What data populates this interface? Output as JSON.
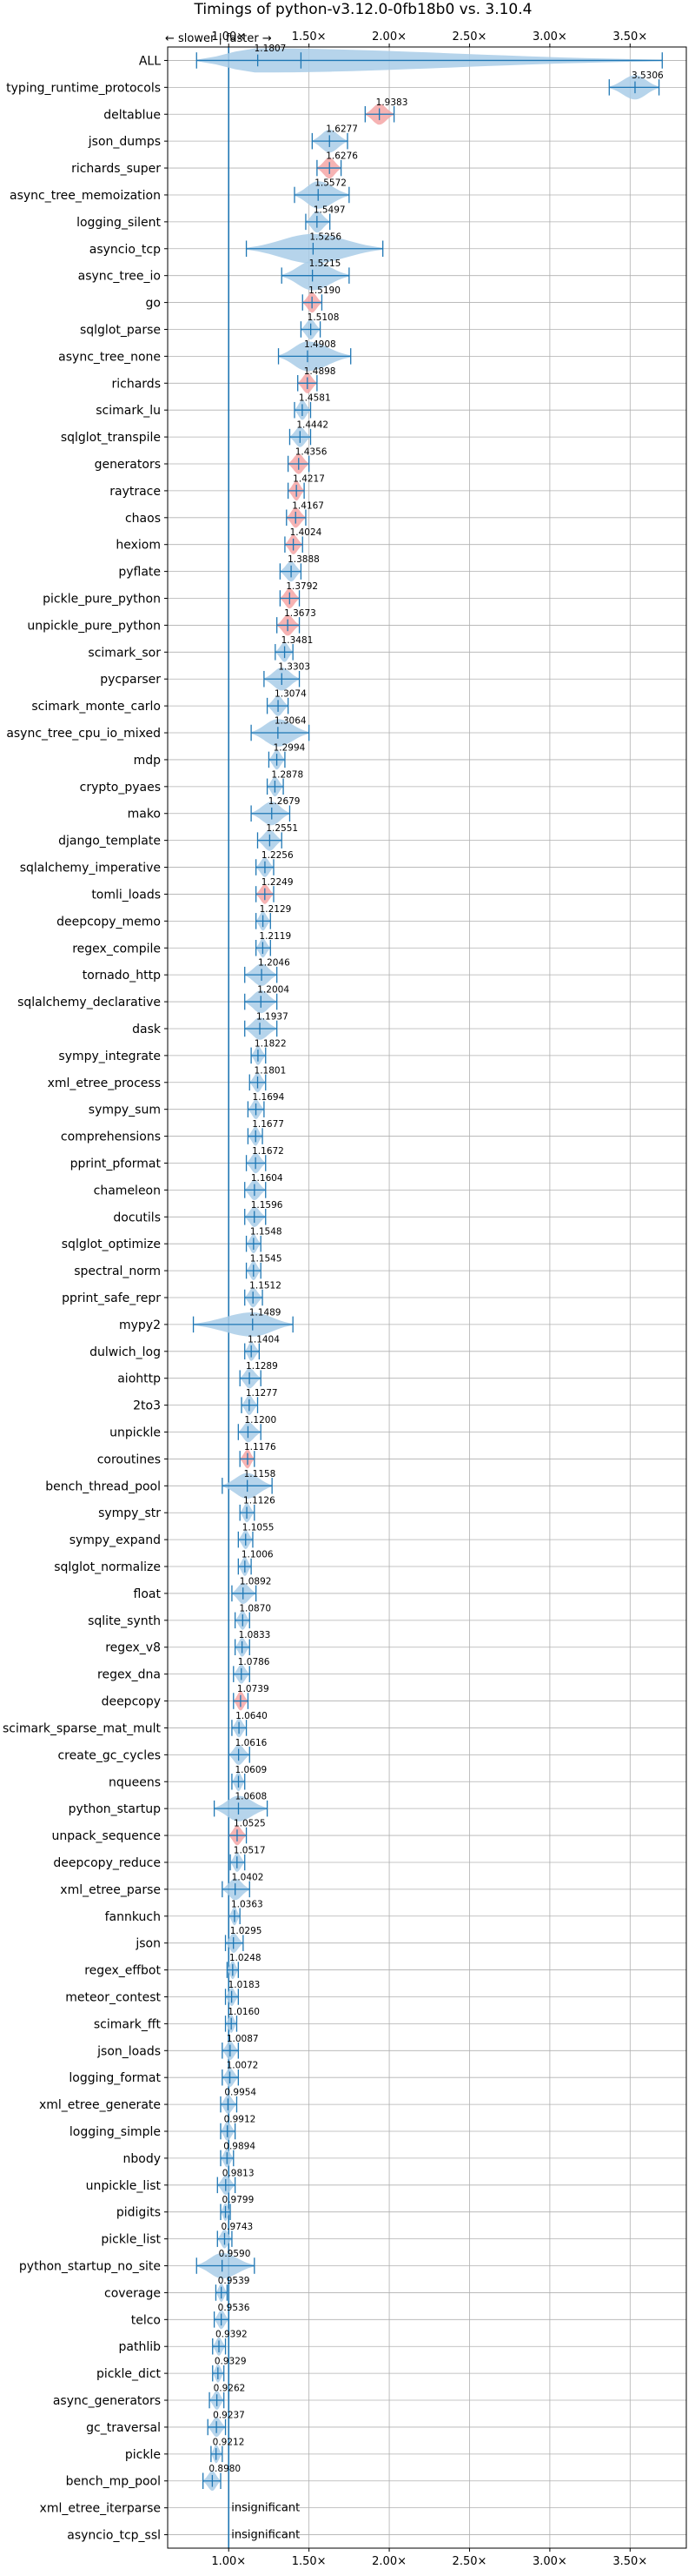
{
  "chart_data": {
    "type": "violin",
    "title": "Timings of python-v3.12.0-0fb18b0 vs. 3.10.4",
    "direction_note": "← slower | faster →",
    "xlim": [
      0.62,
      3.85
    ],
    "xticks": [
      1.0,
      1.5,
      2.0,
      2.5,
      3.0,
      3.5
    ],
    "xtick_labels": [
      "1.00×",
      "1.50×",
      "2.00×",
      "2.50×",
      "3.00×",
      "3.50×"
    ],
    "reference_line": 1.0,
    "grid": true,
    "colors": {
      "normal": "#a9cce8",
      "significant": "#f4a6a6",
      "line": "#1f77b4",
      "grid": "#b0b0b0"
    },
    "benchmarks": [
      {
        "name": "ALL",
        "label": "1.1807",
        "min": 0.8,
        "max": 3.7,
        "width": 0.12,
        "red": false,
        "extra": [
          1.45
        ]
      },
      {
        "name": "typing_runtime_protocols",
        "label": "3.5306",
        "min": 3.37,
        "max": 3.68,
        "width": 0.12,
        "red": false
      },
      {
        "name": "deltablue",
        "label": "1.9383",
        "min": 1.85,
        "max": 2.03,
        "width": 0.07,
        "red": true
      },
      {
        "name": "json_dumps",
        "label": "1.6277",
        "min": 1.52,
        "max": 1.74,
        "width": 0.1,
        "red": false
      },
      {
        "name": "richards_super",
        "label": "1.6276",
        "min": 1.55,
        "max": 1.7,
        "width": 0.07,
        "red": true
      },
      {
        "name": "async_tree_memoization",
        "label": "1.5572",
        "min": 1.41,
        "max": 1.75,
        "width": 0.17,
        "red": false
      },
      {
        "name": "logging_silent",
        "label": "1.5497",
        "min": 1.48,
        "max": 1.63,
        "width": 0.08,
        "red": false
      },
      {
        "name": "asyncio_tcp",
        "label": "1.5256",
        "min": 1.11,
        "max": 1.96,
        "width": 0.4,
        "red": false
      },
      {
        "name": "async_tree_io",
        "label": "1.5215",
        "min": 1.33,
        "max": 1.75,
        "width": 0.2,
        "red": false
      },
      {
        "name": "go",
        "label": "1.5190",
        "min": 1.46,
        "max": 1.58,
        "width": 0.06,
        "red": true
      },
      {
        "name": "sqlglot_parse",
        "label": "1.5108",
        "min": 1.45,
        "max": 1.57,
        "width": 0.06,
        "red": false
      },
      {
        "name": "async_tree_none",
        "label": "1.4908",
        "min": 1.31,
        "max": 1.76,
        "width": 0.22,
        "red": false
      },
      {
        "name": "richards",
        "label": "1.4898",
        "min": 1.43,
        "max": 1.55,
        "width": 0.06,
        "red": true
      },
      {
        "name": "scimark_lu",
        "label": "1.4581",
        "min": 1.41,
        "max": 1.51,
        "width": 0.05,
        "red": false
      },
      {
        "name": "sqlglot_transpile",
        "label": "1.4442",
        "min": 1.38,
        "max": 1.51,
        "width": 0.06,
        "red": false
      },
      {
        "name": "generators",
        "label": "1.4356",
        "min": 1.37,
        "max": 1.5,
        "width": 0.06,
        "red": true
      },
      {
        "name": "raytrace",
        "label": "1.4217",
        "min": 1.37,
        "max": 1.47,
        "width": 0.05,
        "red": true
      },
      {
        "name": "chaos",
        "label": "1.4167",
        "min": 1.36,
        "max": 1.48,
        "width": 0.06,
        "red": true
      },
      {
        "name": "hexiom",
        "label": "1.4024",
        "min": 1.35,
        "max": 1.46,
        "width": 0.05,
        "red": true
      },
      {
        "name": "pyflate",
        "label": "1.3888",
        "min": 1.32,
        "max": 1.45,
        "width": 0.06,
        "red": false
      },
      {
        "name": "pickle_pure_python",
        "label": "1.3792",
        "min": 1.32,
        "max": 1.44,
        "width": 0.06,
        "red": true
      },
      {
        "name": "unpickle_pure_python",
        "label": "1.3673",
        "min": 1.3,
        "max": 1.44,
        "width": 0.07,
        "red": true
      },
      {
        "name": "scimark_sor",
        "label": "1.3481",
        "min": 1.29,
        "max": 1.4,
        "width": 0.05,
        "red": false
      },
      {
        "name": "pycparser",
        "label": "1.3303",
        "min": 1.22,
        "max": 1.44,
        "width": 0.1,
        "red": false
      },
      {
        "name": "scimark_monte_carlo",
        "label": "1.3074",
        "min": 1.24,
        "max": 1.37,
        "width": 0.06,
        "red": false
      },
      {
        "name": "async_tree_cpu_io_mixed",
        "label": "1.3064",
        "min": 1.14,
        "max": 1.5,
        "width": 0.17,
        "red": false
      },
      {
        "name": "mdp",
        "label": "1.2994",
        "min": 1.25,
        "max": 1.35,
        "width": 0.05,
        "red": false
      },
      {
        "name": "crypto_pyaes",
        "label": "1.2878",
        "min": 1.24,
        "max": 1.34,
        "width": 0.05,
        "red": false
      },
      {
        "name": "mako",
        "label": "1.2679",
        "min": 1.14,
        "max": 1.38,
        "width": 0.11,
        "red": false
      },
      {
        "name": "django_template",
        "label": "1.2551",
        "min": 1.18,
        "max": 1.33,
        "width": 0.07,
        "red": false
      },
      {
        "name": "sqlalchemy_imperative",
        "label": "1.2256",
        "min": 1.17,
        "max": 1.28,
        "width": 0.05,
        "red": false
      },
      {
        "name": "tomli_loads",
        "label": "1.2249",
        "min": 1.17,
        "max": 1.28,
        "width": 0.05,
        "red": true
      },
      {
        "name": "deepcopy_memo",
        "label": "1.2129",
        "min": 1.17,
        "max": 1.26,
        "width": 0.04,
        "red": false
      },
      {
        "name": "regex_compile",
        "label": "1.2119",
        "min": 1.17,
        "max": 1.26,
        "width": 0.04,
        "red": false
      },
      {
        "name": "tornado_http",
        "label": "1.2046",
        "min": 1.1,
        "max": 1.3,
        "width": 0.09,
        "red": false
      },
      {
        "name": "sqlalchemy_declarative",
        "label": "1.2004",
        "min": 1.1,
        "max": 1.3,
        "width": 0.1,
        "red": false
      },
      {
        "name": "dask",
        "label": "1.1937",
        "min": 1.1,
        "max": 1.3,
        "width": 0.09,
        "red": false
      },
      {
        "name": "sympy_integrate",
        "label": "1.1822",
        "min": 1.14,
        "max": 1.23,
        "width": 0.04,
        "red": false
      },
      {
        "name": "xml_etree_process",
        "label": "1.1801",
        "min": 1.13,
        "max": 1.23,
        "width": 0.05,
        "red": false
      },
      {
        "name": "sympy_sum",
        "label": "1.1694",
        "min": 1.12,
        "max": 1.22,
        "width": 0.05,
        "red": false
      },
      {
        "name": "comprehensions",
        "label": "1.1677",
        "min": 1.12,
        "max": 1.21,
        "width": 0.04,
        "red": false
      },
      {
        "name": "pprint_pformat",
        "label": "1.1672",
        "min": 1.11,
        "max": 1.23,
        "width": 0.06,
        "red": false
      },
      {
        "name": "chameleon",
        "label": "1.1604",
        "min": 1.1,
        "max": 1.23,
        "width": 0.06,
        "red": false
      },
      {
        "name": "docutils",
        "label": "1.1596",
        "min": 1.1,
        "max": 1.23,
        "width": 0.06,
        "red": false
      },
      {
        "name": "sqlglot_optimize",
        "label": "1.1548",
        "min": 1.11,
        "max": 1.2,
        "width": 0.04,
        "red": false
      },
      {
        "name": "spectral_norm",
        "label": "1.1545",
        "min": 1.11,
        "max": 1.2,
        "width": 0.04,
        "red": false
      },
      {
        "name": "pprint_safe_repr",
        "label": "1.1512",
        "min": 1.1,
        "max": 1.21,
        "width": 0.05,
        "red": false
      },
      {
        "name": "mypy2",
        "label": "1.1489",
        "min": 0.78,
        "max": 1.4,
        "width": 0.12,
        "red": false
      },
      {
        "name": "dulwich_log",
        "label": "1.1404",
        "min": 1.1,
        "max": 1.19,
        "width": 0.04,
        "red": false
      },
      {
        "name": "aiohttp",
        "label": "1.1289",
        "min": 1.07,
        "max": 1.2,
        "width": 0.06,
        "red": false
      },
      {
        "name": "2to3",
        "label": "1.1277",
        "min": 1.08,
        "max": 1.18,
        "width": 0.05,
        "red": false
      },
      {
        "name": "unpickle",
        "label": "1.1200",
        "min": 1.06,
        "max": 1.2,
        "width": 0.06,
        "red": false
      },
      {
        "name": "coroutines",
        "label": "1.1176",
        "min": 1.07,
        "max": 1.16,
        "width": 0.04,
        "red": true
      },
      {
        "name": "bench_thread_pool",
        "label": "1.1158",
        "min": 0.96,
        "max": 1.27,
        "width": 0.14,
        "red": false
      },
      {
        "name": "sympy_str",
        "label": "1.1126",
        "min": 1.07,
        "max": 1.16,
        "width": 0.04,
        "red": false
      },
      {
        "name": "sympy_expand",
        "label": "1.1055",
        "min": 1.06,
        "max": 1.15,
        "width": 0.04,
        "red": false
      },
      {
        "name": "sqlglot_normalize",
        "label": "1.1006",
        "min": 1.06,
        "max": 1.14,
        "width": 0.04,
        "red": false
      },
      {
        "name": "float",
        "label": "1.0892",
        "min": 1.02,
        "max": 1.17,
        "width": 0.07,
        "red": false
      },
      {
        "name": "sqlite_synth",
        "label": "1.0870",
        "min": 1.04,
        "max": 1.13,
        "width": 0.04,
        "red": false
      },
      {
        "name": "regex_v8",
        "label": "1.0833",
        "min": 1.04,
        "max": 1.13,
        "width": 0.04,
        "red": false
      },
      {
        "name": "regex_dna",
        "label": "1.0786",
        "min": 1.03,
        "max": 1.13,
        "width": 0.04,
        "red": false
      },
      {
        "name": "deepcopy",
        "label": "1.0739",
        "min": 1.03,
        "max": 1.12,
        "width": 0.04,
        "red": true
      },
      {
        "name": "scimark_sparse_mat_mult",
        "label": "1.0640",
        "min": 1.02,
        "max": 1.11,
        "width": 0.04,
        "red": false
      },
      {
        "name": "create_gc_cycles",
        "label": "1.0616",
        "min": 1.0,
        "max": 1.13,
        "width": 0.06,
        "red": false
      },
      {
        "name": "nqueens",
        "label": "1.0609",
        "min": 1.02,
        "max": 1.1,
        "width": 0.04,
        "red": false
      },
      {
        "name": "python_startup",
        "label": "1.0608",
        "min": 0.91,
        "max": 1.24,
        "width": 0.14,
        "red": false
      },
      {
        "name": "unpack_sequence",
        "label": "1.0525",
        "min": 1.0,
        "max": 1.11,
        "width": 0.05,
        "red": true
      },
      {
        "name": "deepcopy_reduce",
        "label": "1.0517",
        "min": 1.01,
        "max": 1.1,
        "width": 0.04,
        "red": false
      },
      {
        "name": "xml_etree_parse",
        "label": "1.0402",
        "min": 0.96,
        "max": 1.13,
        "width": 0.08,
        "red": false
      },
      {
        "name": "fannkuch",
        "label": "1.0363",
        "min": 1.0,
        "max": 1.07,
        "width": 0.03,
        "red": false
      },
      {
        "name": "json",
        "label": "1.0295",
        "min": 0.98,
        "max": 1.09,
        "width": 0.05,
        "red": false
      },
      {
        "name": "regex_effbot",
        "label": "1.0248",
        "min": 0.99,
        "max": 1.06,
        "width": 0.03,
        "red": false
      },
      {
        "name": "meteor_contest",
        "label": "1.0183",
        "min": 0.98,
        "max": 1.06,
        "width": 0.03,
        "red": false
      },
      {
        "name": "scimark_fft",
        "label": "1.0160",
        "min": 0.98,
        "max": 1.05,
        "width": 0.03,
        "red": false
      },
      {
        "name": "json_loads",
        "label": "1.0087",
        "min": 0.96,
        "max": 1.06,
        "width": 0.04,
        "red": false
      },
      {
        "name": "logging_format",
        "label": "1.0072",
        "min": 0.96,
        "max": 1.06,
        "width": 0.04,
        "red": false
      },
      {
        "name": "xml_etree_generate",
        "label": "0.9954",
        "min": 0.95,
        "max": 1.05,
        "width": 0.04,
        "red": false
      },
      {
        "name": "logging_simple",
        "label": "0.9912",
        "min": 0.95,
        "max": 1.04,
        "width": 0.04,
        "red": false
      },
      {
        "name": "nbody",
        "label": "0.9894",
        "min": 0.95,
        "max": 1.03,
        "width": 0.03,
        "red": false
      },
      {
        "name": "unpickle_list",
        "label": "0.9813",
        "min": 0.93,
        "max": 1.04,
        "width": 0.05,
        "red": false
      },
      {
        "name": "pidigits",
        "label": "0.9799",
        "min": 0.95,
        "max": 1.01,
        "width": 0.03,
        "red": false
      },
      {
        "name": "pickle_list",
        "label": "0.9743",
        "min": 0.93,
        "max": 1.02,
        "width": 0.04,
        "red": false
      },
      {
        "name": "python_startup_no_site",
        "label": "0.9590",
        "min": 0.8,
        "max": 1.16,
        "width": 0.14,
        "red": false
      },
      {
        "name": "coverage",
        "label": "0.9539",
        "min": 0.92,
        "max": 0.99,
        "width": 0.03,
        "red": false
      },
      {
        "name": "telco",
        "label": "0.9536",
        "min": 0.91,
        "max": 1.0,
        "width": 0.04,
        "red": false
      },
      {
        "name": "pathlib",
        "label": "0.9392",
        "min": 0.9,
        "max": 0.98,
        "width": 0.03,
        "red": false
      },
      {
        "name": "pickle_dict",
        "label": "0.9329",
        "min": 0.9,
        "max": 0.97,
        "width": 0.03,
        "red": false
      },
      {
        "name": "async_generators",
        "label": "0.9262",
        "min": 0.88,
        "max": 0.97,
        "width": 0.04,
        "red": false
      },
      {
        "name": "gc_traversal",
        "label": "0.9237",
        "min": 0.87,
        "max": 0.98,
        "width": 0.05,
        "red": false
      },
      {
        "name": "pickle",
        "label": "0.9212",
        "min": 0.89,
        "max": 0.96,
        "width": 0.03,
        "red": false
      },
      {
        "name": "bench_mp_pool",
        "label": "0.8980",
        "min": 0.84,
        "max": 0.95,
        "width": 0.05,
        "red": false
      },
      {
        "name": "xml_etree_iterparse",
        "label": "insignificant",
        "insignificant": true
      },
      {
        "name": "asyncio_tcp_ssl",
        "label": "insignificant",
        "insignificant": true
      }
    ]
  }
}
